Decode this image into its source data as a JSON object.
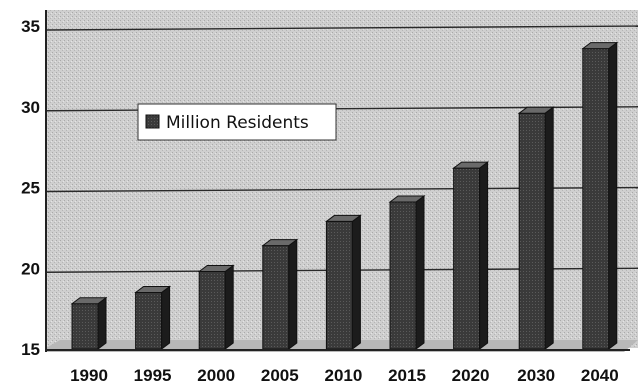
{
  "chart_data": {
    "type": "bar",
    "title": "",
    "xlabel": "",
    "ylabel": "",
    "categories": [
      "1990",
      "1995",
      "2000",
      "2005",
      "2010",
      "2015",
      "2020",
      "2030",
      "2040"
    ],
    "series": [
      {
        "name": "Million Residents",
        "values": [
          17.8,
          18.5,
          19.8,
          21.4,
          22.9,
          24.1,
          26.2,
          29.6,
          33.6
        ]
      }
    ],
    "ylim": [
      15,
      35
    ],
    "yticks": [
      "15",
      "20",
      "25",
      "30",
      "35"
    ],
    "grid": true,
    "legend_position": "top-left",
    "three_d": true,
    "colors": {
      "bar": "#3a3a3a",
      "bar_side": "#1c1c1c",
      "bar_top": "#6a6a6a",
      "plot_bg": "#d4d4d4",
      "gridline": "#2a2a2a"
    }
  }
}
